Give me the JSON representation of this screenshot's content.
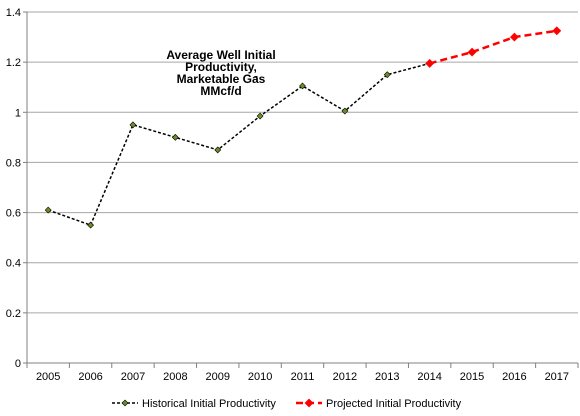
{
  "chart_data": {
    "type": "line",
    "title_lines": [
      "Average Well Initial",
      "Productivity,",
      "Marketable Gas",
      "MMcf/d"
    ],
    "title_dash": "-",
    "xlabel": "",
    "ylabel": "",
    "ylim": [
      0,
      1.4
    ],
    "yticks": [
      "0",
      "0.2",
      "0.4",
      "0.6",
      "0.8",
      "1",
      "1.2",
      "1.4"
    ],
    "categories": [
      "2005",
      "2006",
      "2007",
      "2008",
      "2009",
      "2010",
      "2011",
      "2012",
      "2013",
      "2014",
      "2015",
      "2016",
      "2017"
    ],
    "grid": true,
    "legend_position": "bottom",
    "series": [
      {
        "name": "Historical Initial Productivity",
        "color": "#000000",
        "marker_color": "#6b8e23",
        "values": [
          0.61,
          0.55,
          0.95,
          0.9,
          0.85,
          0.985,
          1.105,
          1.005,
          1.15,
          1.195,
          null,
          null,
          null
        ]
      },
      {
        "name": "Projected Initial Productivity",
        "color": "#ff0000",
        "marker_color": "#ff0000",
        "values": [
          null,
          null,
          null,
          null,
          null,
          null,
          null,
          null,
          null,
          1.195,
          1.24,
          1.3,
          1.325
        ]
      }
    ]
  }
}
